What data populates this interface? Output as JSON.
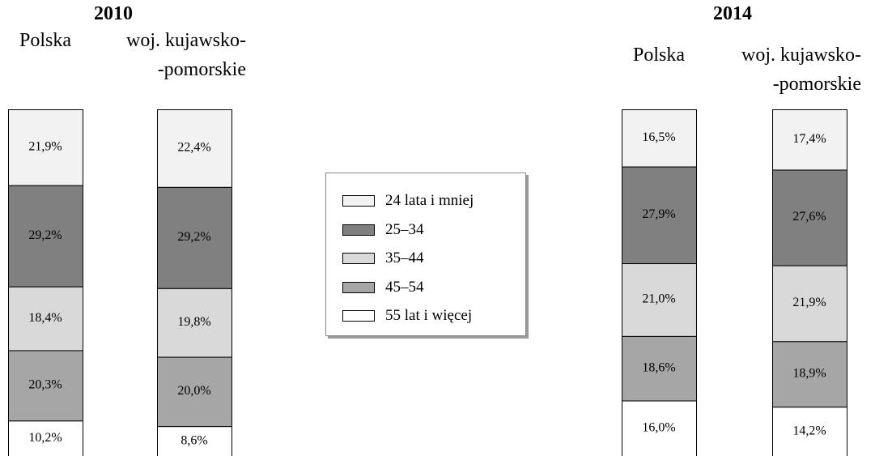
{
  "chart_data": {
    "type": "bar",
    "stacked": true,
    "groups": [
      "2010",
      "2014"
    ],
    "categories": [
      "Polska",
      "woj. kujawsko-\n-pomorskie",
      "Polska",
      "woj. kujawsko-\n-pomorskie"
    ],
    "series": [
      {
        "name": "24 lata i mniej",
        "color": "#f2f2f2",
        "values": [
          21.9,
          22.4,
          16.5,
          17.4
        ],
        "value_labels": [
          "21,9%",
          "22,4%",
          "16,5%",
          "17,4%"
        ]
      },
      {
        "name": "25–34",
        "color": "#808080",
        "values": [
          29.2,
          29.2,
          27.9,
          27.6
        ],
        "value_labels": [
          "29,2%",
          "29,2%",
          "27,9%",
          "27,6%"
        ]
      },
      {
        "name": "35–44",
        "color": "#d9d9d9",
        "values": [
          18.4,
          19.8,
          21.0,
          21.9
        ],
        "value_labels": [
          "18,4%",
          "19,8%",
          "21,0%",
          "21,9%"
        ]
      },
      {
        "name": "45–54",
        "color": "#a6a6a6",
        "values": [
          20.3,
          20.0,
          18.6,
          18.9
        ],
        "value_labels": [
          "20,3%",
          "20,0%",
          "18,6%",
          "18,9%"
        ]
      },
      {
        "name": "55 lat i więcej",
        "color": "#ffffff",
        "values": [
          10.2,
          8.6,
          16.0,
          14.2
        ],
        "value_labels": [
          "10,2%",
          "8,6%",
          "16,0%",
          "14,2%"
        ]
      }
    ]
  }
}
